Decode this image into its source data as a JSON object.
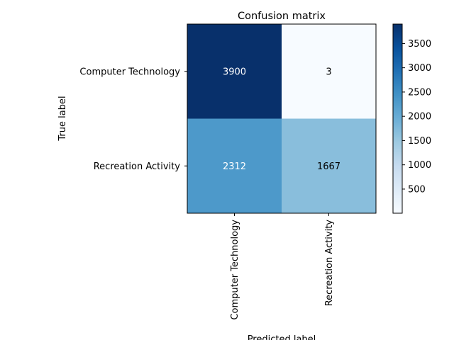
{
  "chart_data": {
    "type": "heatmap",
    "title": "Confusion matrix",
    "xlabel": "Predicted label",
    "ylabel": "True label",
    "row_labels": [
      "Computer Technology",
      "Recreation Activity"
    ],
    "col_labels": [
      "Computer Technology",
      "Recreation Activity"
    ],
    "values": [
      [
        3900,
        3
      ],
      [
        2312,
        1667
      ]
    ],
    "colormap": "Blues",
    "colorbar": {
      "range": [
        3,
        3900
      ],
      "ticks": [
        500,
        1000,
        1500,
        2000,
        2500,
        3000,
        3500
      ],
      "tick_labels": [
        "500",
        "1000",
        "1500",
        "2000",
        "2500",
        "3000",
        "3500"
      ]
    },
    "text_colors": {
      "dark_cell": "#ffffff",
      "light_cell": "#000000"
    }
  }
}
